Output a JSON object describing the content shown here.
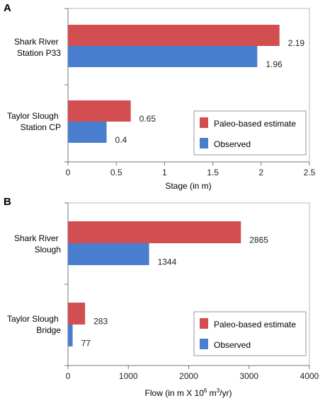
{
  "chart_data": [
    {
      "panel_label": "A",
      "type": "bar",
      "orientation": "horizontal",
      "categories": [
        [
          "Shark River",
          "Station P33"
        ],
        [
          "Taylor Slough",
          "Station CP"
        ]
      ],
      "series": [
        {
          "name": "Paleo-based estimate",
          "color": "#d24e50",
          "values": [
            2.19,
            0.65
          ]
        },
        {
          "name": "Observed",
          "color": "#4a7fd0",
          "values": [
            1.96,
            0.4
          ]
        }
      ],
      "data_labels": [
        [
          "2.19",
          "0.65"
        ],
        [
          "1.96",
          "0.4"
        ]
      ],
      "xticks": [
        0,
        0.5,
        1,
        1.5,
        2,
        2.5
      ],
      "xtick_labels": [
        "0",
        "0.5",
        "1",
        "1.5",
        "2",
        "2.5"
      ],
      "xlabel": "Stage (in m)",
      "xlim": [
        0,
        2.5
      ],
      "legend_placement": "bottom-right"
    },
    {
      "panel_label": "B",
      "type": "bar",
      "orientation": "horizontal",
      "categories": [
        [
          "Shark River",
          "Slough"
        ],
        [
          "Taylor Slough",
          "Bridge"
        ]
      ],
      "series": [
        {
          "name": "Paleo-based estimate",
          "color": "#d24e50",
          "values": [
            2865,
            283
          ]
        },
        {
          "name": "Observed",
          "color": "#4a7fd0",
          "values": [
            1344,
            77
          ]
        }
      ],
      "data_labels": [
        [
          "2865",
          "283"
        ],
        [
          "1344",
          "77"
        ]
      ],
      "xticks": [
        0,
        1000,
        2000,
        3000,
        4000
      ],
      "xtick_labels": [
        "0",
        "1000",
        "2000",
        "3000",
        "4000"
      ],
      "xlabel": "Flow (in m X 10",
      "xlabel_sup": "6",
      "xlabel_tail": " m",
      "xlabel_sup2": "3",
      "xlabel_end": "/yr)",
      "xlim": [
        0,
        4000
      ],
      "legend_placement": "bottom-right"
    }
  ]
}
